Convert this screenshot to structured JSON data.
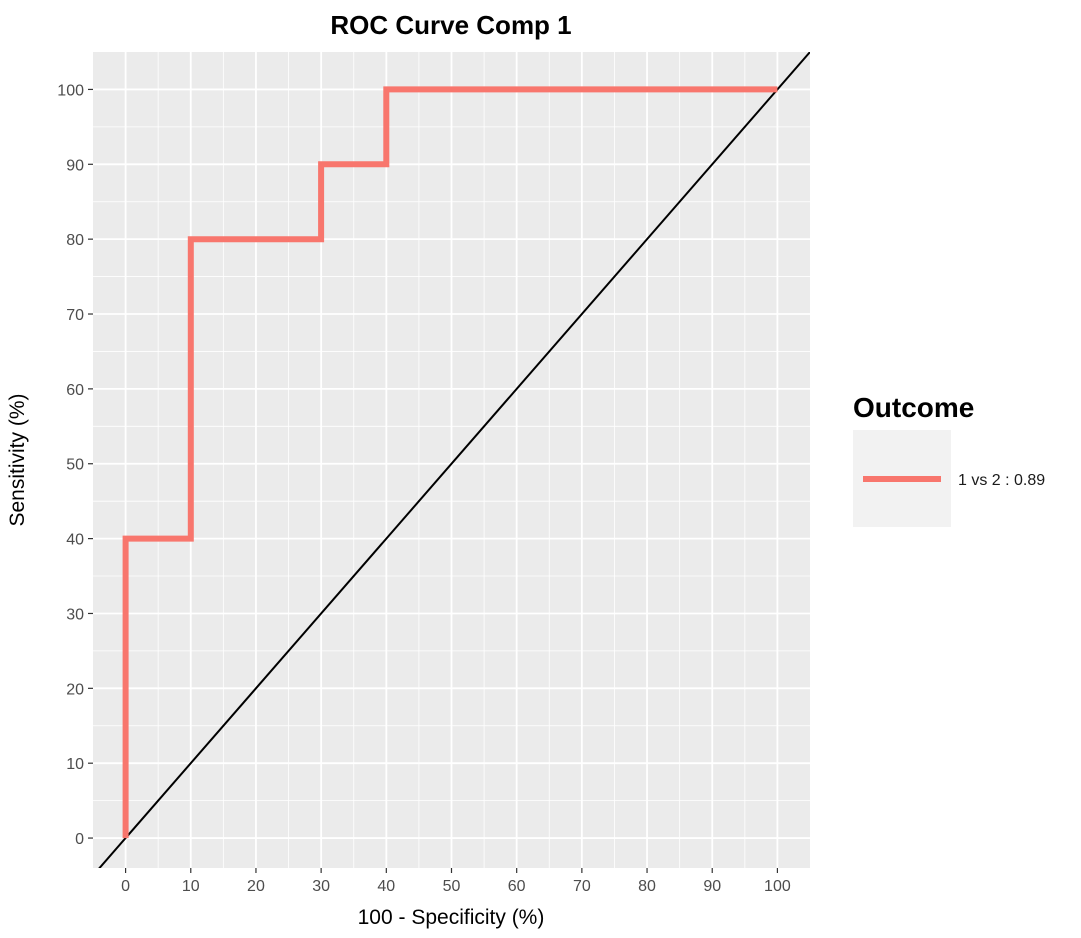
{
  "chart_data": {
    "type": "line",
    "title": "ROC Curve Comp 1",
    "xlabel": "100 - Specificity (%)",
    "ylabel": "Sensitivity (%)",
    "xlim": [
      -5,
      105
    ],
    "ylim": [
      -4,
      105
    ],
    "x_ticks": [
      "0",
      "10",
      "20",
      "30",
      "40",
      "50",
      "60",
      "70",
      "80",
      "90",
      "100"
    ],
    "y_ticks": [
      "0",
      "10",
      "20",
      "30",
      "40",
      "50",
      "60",
      "70",
      "80",
      "90",
      "100"
    ],
    "grid": true,
    "legend": {
      "title": "Outcome",
      "placement": "right",
      "entries": [
        "1 vs 2 : 0.89"
      ]
    },
    "series": [
      {
        "name": "1 vs 2 : 0.89",
        "color": "#F8766D",
        "step": true,
        "x": [
          0,
          0,
          10,
          10,
          30,
          30,
          40,
          40,
          100
        ],
        "y": [
          0,
          40,
          40,
          80,
          80,
          90,
          90,
          100,
          100
        ]
      }
    ],
    "reference_line": {
      "intercept": 0,
      "slope": 1,
      "color": "#000000"
    },
    "panel_color": "#EBEBEB"
  }
}
